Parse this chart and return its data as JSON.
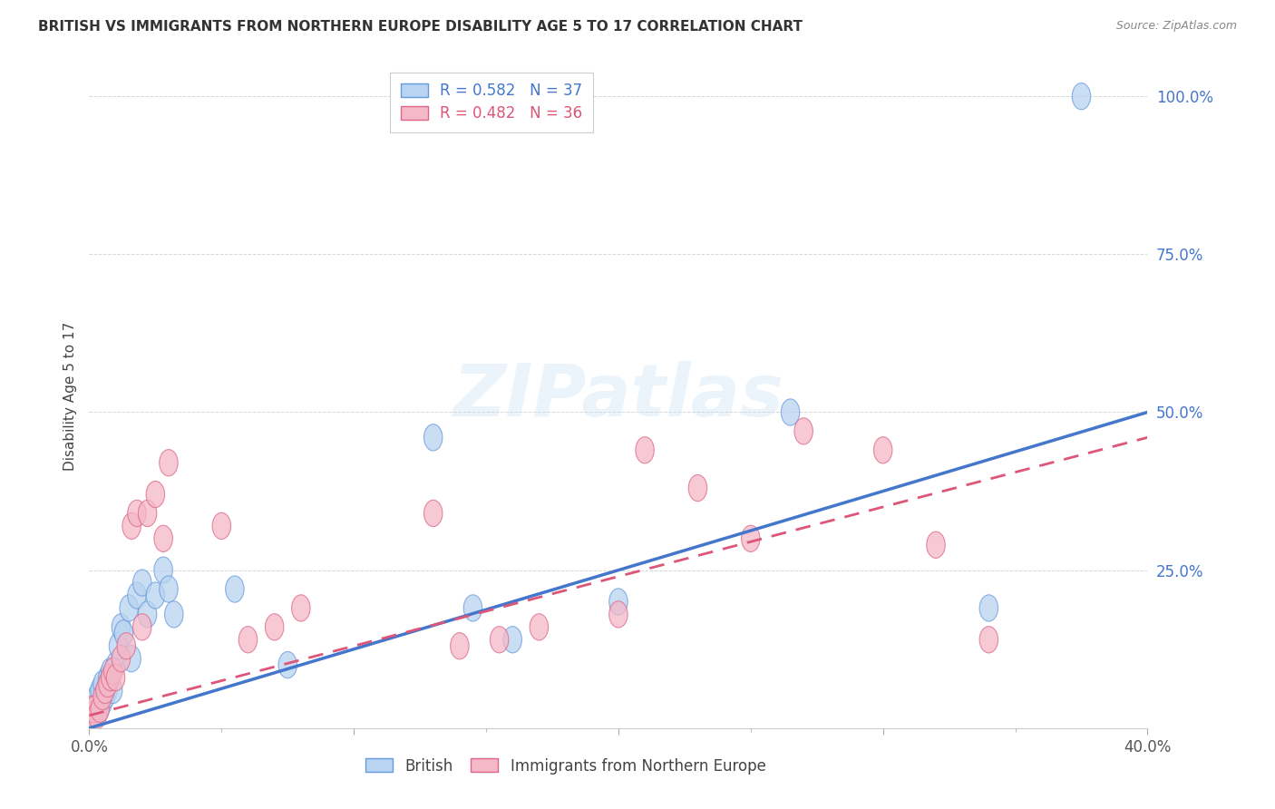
{
  "title": "BRITISH VS IMMIGRANTS FROM NORTHERN EUROPE DISABILITY AGE 5 TO 17 CORRELATION CHART",
  "source": "Source: ZipAtlas.com",
  "ylabel": "Disability Age 5 to 17",
  "xlim": [
    0.0,
    0.4
  ],
  "ylim": [
    0.0,
    1.05
  ],
  "y_tick_positions": [
    0.0,
    0.25,
    0.5,
    0.75,
    1.0
  ],
  "y_tick_labels": [
    "",
    "25.0%",
    "50.0%",
    "75.0%",
    "100.0%"
  ],
  "x_tick_major": [
    0.0,
    0.1,
    0.2,
    0.3,
    0.4
  ],
  "x_tick_minor": [
    0.05,
    0.15,
    0.25,
    0.35
  ],
  "x_tick_labels": [
    "0.0%",
    "",
    "",
    "",
    "40.0%"
  ],
  "british_fill": "#b8d4f0",
  "british_edge": "#6699dd",
  "immigrant_fill": "#f4b8c8",
  "immigrant_edge": "#dd6688",
  "british_line_color": "#4477cc",
  "immigrant_line_color": "#dd5577",
  "R_british": 0.582,
  "N_british": 37,
  "R_immigrant": 0.482,
  "N_immigrant": 36,
  "watermark": "ZIPatlas",
  "british_line_x0": 0.0,
  "british_line_y0": 0.0,
  "british_line_x1": 0.4,
  "british_line_y1": 0.5,
  "immigrant_line_x0": 0.0,
  "immigrant_line_y0": 0.02,
  "immigrant_line_x1": 0.4,
  "immigrant_line_y1": 0.46,
  "british_x": [
    0.001,
    0.001,
    0.002,
    0.002,
    0.003,
    0.003,
    0.004,
    0.004,
    0.005,
    0.005,
    0.006,
    0.007,
    0.007,
    0.008,
    0.009,
    0.01,
    0.011,
    0.012,
    0.013,
    0.015,
    0.016,
    0.018,
    0.02,
    0.022,
    0.025,
    0.028,
    0.03,
    0.032,
    0.055,
    0.075,
    0.13,
    0.145,
    0.16,
    0.2,
    0.265,
    0.34,
    0.375
  ],
  "british_y": [
    0.02,
    0.03,
    0.02,
    0.04,
    0.03,
    0.05,
    0.03,
    0.06,
    0.04,
    0.07,
    0.05,
    0.06,
    0.08,
    0.09,
    0.06,
    0.1,
    0.13,
    0.16,
    0.15,
    0.19,
    0.11,
    0.21,
    0.23,
    0.18,
    0.21,
    0.25,
    0.22,
    0.18,
    0.22,
    0.1,
    0.46,
    0.19,
    0.14,
    0.2,
    0.5,
    0.19,
    1.0
  ],
  "immigrant_x": [
    0.001,
    0.001,
    0.002,
    0.003,
    0.004,
    0.005,
    0.006,
    0.007,
    0.008,
    0.009,
    0.01,
    0.012,
    0.014,
    0.016,
    0.018,
    0.02,
    0.022,
    0.025,
    0.028,
    0.03,
    0.05,
    0.06,
    0.07,
    0.08,
    0.13,
    0.14,
    0.155,
    0.17,
    0.2,
    0.21,
    0.23,
    0.25,
    0.27,
    0.3,
    0.32,
    0.34
  ],
  "immigrant_y": [
    0.02,
    0.03,
    0.03,
    0.02,
    0.03,
    0.05,
    0.06,
    0.07,
    0.08,
    0.09,
    0.08,
    0.11,
    0.13,
    0.32,
    0.34,
    0.16,
    0.34,
    0.37,
    0.3,
    0.42,
    0.32,
    0.14,
    0.16,
    0.19,
    0.34,
    0.13,
    0.14,
    0.16,
    0.18,
    0.44,
    0.38,
    0.3,
    0.47,
    0.44,
    0.29,
    0.14
  ]
}
